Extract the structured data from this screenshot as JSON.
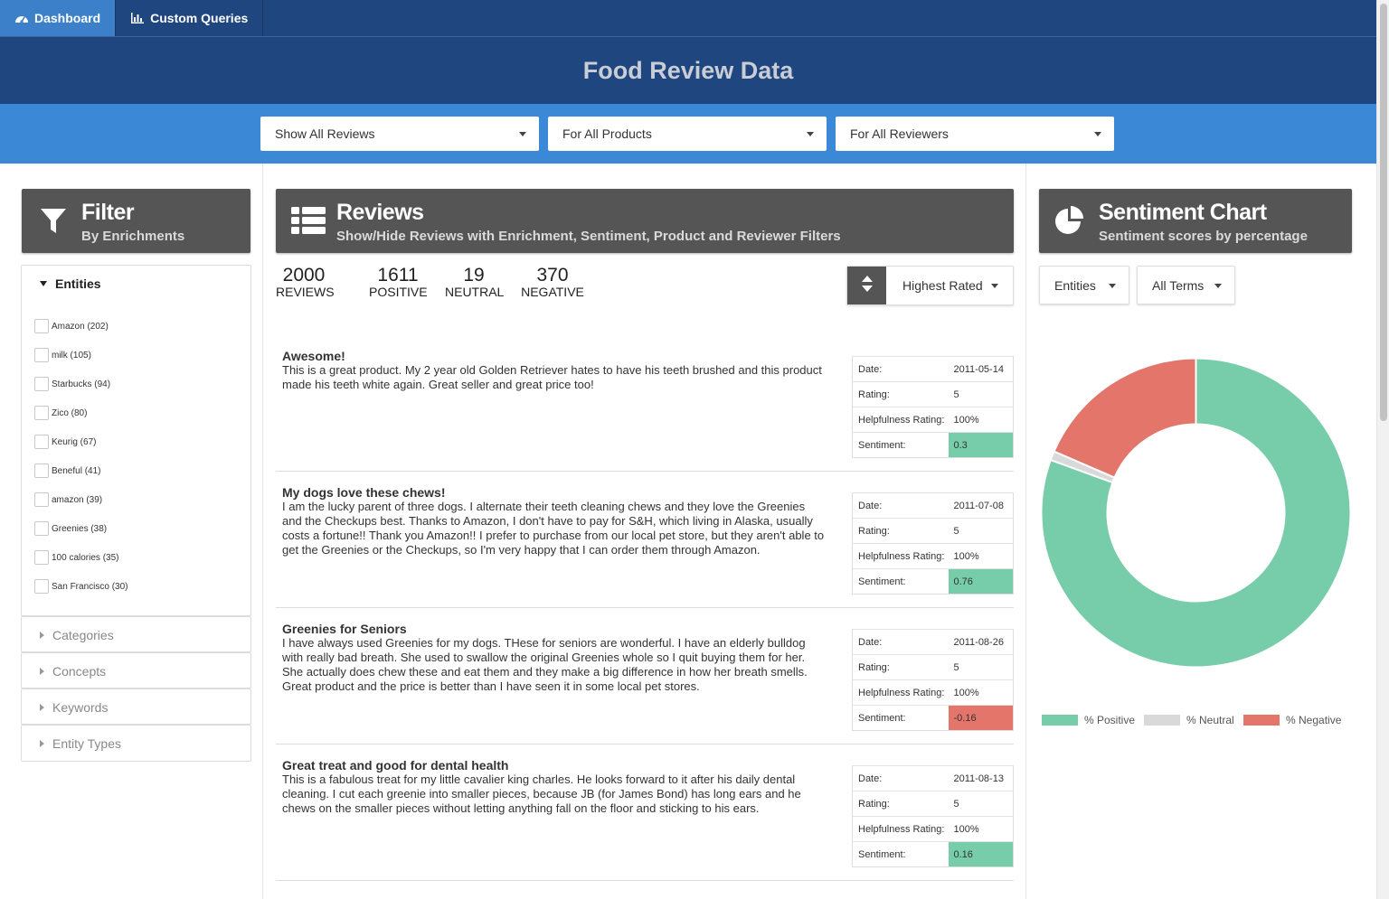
{
  "nav": {
    "tabs": [
      {
        "label": "Dashboard",
        "icon": "dashboard-gauge-icon",
        "active": true
      },
      {
        "label": "Custom Queries",
        "icon": "bar-chart-icon",
        "active": false
      }
    ]
  },
  "header": {
    "title": "Food Review Data"
  },
  "filters": {
    "reviews_select": "Show All Reviews",
    "products_select": "For All Products",
    "reviewers_select": "For All Reviewers"
  },
  "filter_panel": {
    "title": "Filter",
    "subtitle": "By Enrichments",
    "icon": "funnel-icon",
    "entities_label": "Entities",
    "entities": [
      "Amazon (202)",
      "milk (105)",
      "Starbucks (94)",
      "Zico (80)",
      "Keurig (67)",
      "Beneful (41)",
      "amazon (39)",
      "Greenies (38)",
      "100 calories (35)",
      "San Francisco (30)"
    ],
    "sections": [
      "Categories",
      "Concepts",
      "Keywords",
      "Entity Types"
    ]
  },
  "reviews_panel": {
    "title": "Reviews",
    "subtitle": "Show/Hide Reviews with Enrichment, Sentiment, Product and Reviewer Filters",
    "icon": "list-icon",
    "stats": [
      {
        "num": "2000",
        "label": "REVIEWS"
      },
      {
        "num": "1611",
        "label": "POSITIVE"
      },
      {
        "num": "19",
        "label": "NEUTRAL"
      },
      {
        "num": "370",
        "label": "NEGATIVE"
      }
    ],
    "sort_label": "Highest Rated",
    "meta_labels": {
      "date": "Date:",
      "rating": "Rating:",
      "helpfulness": "Helpfulness Rating:",
      "sentiment": "Sentiment:"
    },
    "reviews": [
      {
        "title": "Awesome!",
        "body": "This is a great product. My 2 year old Golden Retriever hates to have his teeth brushed and this product made his teeth white again. Great seller and great price too!",
        "date": "2011-05-14",
        "rating": "5",
        "helpfulness": "100%",
        "sentiment": "0.3"
      },
      {
        "title": "My dogs love these chews!",
        "body": "I am the lucky parent of three dogs. I alternate their teeth cleaning chews and they love the Greenies and the Checkups best. Thanks to Amazon, I don't have to pay for S&H, which living in Alaska, usually costs a fortune!! Thank you Amazon!! I prefer to purchase from our local pet store, but they aren't able to get the Greenies or the Checkups, so I'm very happy that I can order them through Amazon.",
        "date": "2011-07-08",
        "rating": "5",
        "helpfulness": "100%",
        "sentiment": "0.76"
      },
      {
        "title": "Greenies for Seniors",
        "body": "I have always used Greenies for my dogs. THese for seniors are wonderful. I have an elderly bulldog with really bad breath. She used to swallow the original Greenies whole so I quit buying them for her. She actually does chew these and eat them and they make a big difference in how her breath smells. Great product and the price is better than I have seen it in some local pet stores.",
        "date": "2011-08-26",
        "rating": "5",
        "helpfulness": "100%",
        "sentiment": "-0.16"
      },
      {
        "title": "Great treat and good for dental health",
        "body": "This is a fabulous treat for my little cavalier king charles. He looks forward to it after his daily dental cleaning. I cut each greenie into smaller pieces, because JB (for James Bond) has long ears and he chews on the smaller pieces without letting anything fall on the floor and sticking to his ears.",
        "date": "2011-08-13",
        "rating": "5",
        "helpfulness": "100%",
        "sentiment": "0.16"
      }
    ]
  },
  "sentiment_panel": {
    "title": "Sentiment Chart",
    "subtitle": "Sentiment scores by percentage",
    "icon": "pie-chart-icon",
    "type_select": "Entities",
    "terms_select": "All Terms"
  },
  "chart_data": {
    "type": "pie",
    "donut": true,
    "categories": [
      "% Positive",
      "% Neutral",
      "% Negative"
    ],
    "values": [
      1611,
      19,
      370
    ],
    "colors": [
      "#77cdaa",
      "#d9d9d9",
      "#e3756b"
    ],
    "legend": "bottom"
  }
}
